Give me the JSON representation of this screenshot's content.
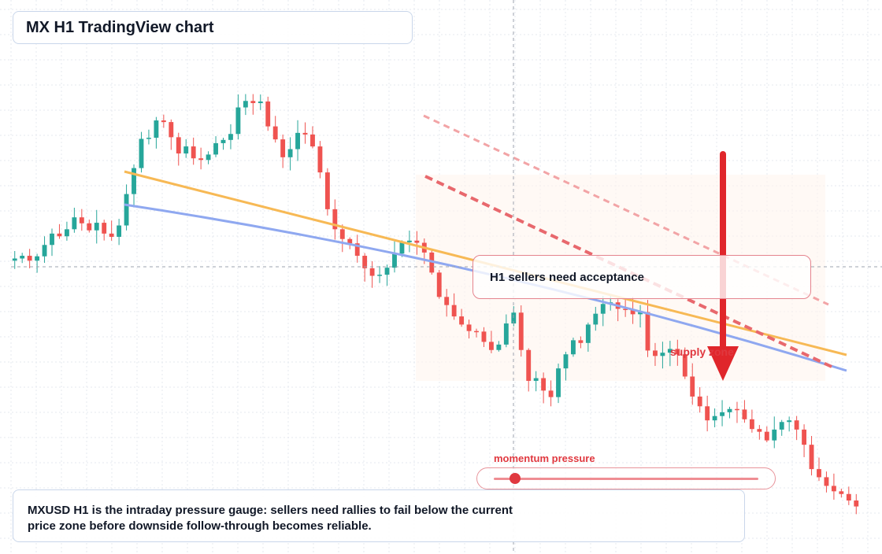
{
  "title": "MX H1 TradingView chart",
  "callout": "H1 sellers need acceptance",
  "supply_label": "supply zone",
  "gauge": {
    "label": "momentum pressure",
    "level": 0.08
  },
  "note": "MXUSD H1 is the intraday pressure gauge: sellers need rallies to fail below the current price zone before downside follow-through becomes reliable.",
  "colors": {
    "bull": "#26a69a",
    "bear": "#ef5350",
    "ma_fast": "#f7b955",
    "ma_slow": "#8fa8f0",
    "arrow": "#e0262b"
  },
  "chart_data": {
    "type": "candlestick",
    "timeframe": "H1",
    "symbol": "MXUSD",
    "ylim": [
      0,
      100
    ],
    "candle_count": 114,
    "close_path": [
      54,
      54.5,
      53.6,
      54.4,
      56.5,
      58.6,
      58.1,
      59.4,
      61.6,
      60.5,
      59.2,
      60.6,
      58.6,
      58.0,
      60.1,
      65.9,
      70.7,
      76.1,
      76.3,
      79.5,
      79.2,
      76.4,
      73.4,
      74.7,
      72.5,
      72.2,
      73.2,
      75.3,
      75.9,
      77.0,
      81.9,
      83.1,
      82.7,
      83.0,
      78.4,
      76.0,
      72.7,
      74.2,
      77.2,
      76.9,
      74.7,
      69.9,
      63.1,
      59.4,
      57.6,
      56.8,
      54.5,
      52.2,
      50.8,
      51.0,
      52.3,
      54.9,
      57.0,
      57.3,
      56.9,
      55.1,
      51.4,
      46.9,
      45.4,
      43.3,
      41.8,
      40.6,
      40.5,
      38.6,
      37.1,
      38.1,
      42.0,
      44.0,
      37.1,
      31.4,
      31.9,
      29.6,
      28.4,
      33.7,
      36.3,
      38.9,
      38.4,
      41.8,
      43.8,
      45.6,
      45.9,
      44.7,
      44.6,
      43.7,
      44.1,
      37.0,
      36.0,
      36.6,
      37.3,
      36.3,
      32.2,
      28.5,
      26.7,
      24.1,
      24.9,
      25.6,
      26.2,
      26.1,
      24.3,
      22.5,
      22.0,
      20.4,
      22.4,
      23.8,
      24.1,
      22.4,
      19.6,
      15.1,
      13.6,
      12.0,
      11.0,
      10.5,
      9.3,
      8.2
    ],
    "overlays": [
      "moving-average-fast",
      "moving-average-slow",
      "descending-trendline",
      "descending-trendline-upper"
    ],
    "crosshair": true,
    "grid": true
  }
}
